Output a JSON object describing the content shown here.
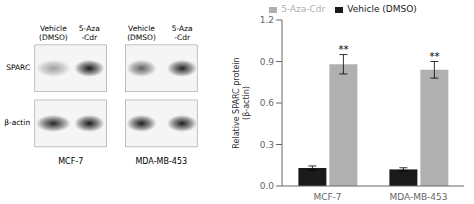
{
  "chart_data": {
    "type": "bar",
    "categories": [
      "MCF-7",
      "MDA-MB-453"
    ],
    "series": [
      {
        "name": "Vehicle (DMSO)",
        "color": "#1a1a1a",
        "values": [
          0.13,
          0.12
        ],
        "errors": [
          0.015,
          0.012
        ]
      },
      {
        "name": "5-Aza-Cdr",
        "color": "#b0b0b0",
        "values": [
          0.88,
          0.84
        ],
        "errors": [
          0.07,
          0.06
        ],
        "annotations": [
          "**",
          "**"
        ]
      }
    ],
    "ylabel": "Relative SPARC protein\n(β-actin)",
    "ylim": [
      0,
      1.2
    ],
    "yticks": [
      {
        "value": 0,
        "label": "0.0"
      },
      0.3,
      0.6,
      0.9,
      1.2
    ],
    "grid": false,
    "legend": "top",
    "annotations": [
      "Vehicle\n(DMSO)",
      "5-Aza\n-Cdr",
      "Vehicle\n(DMSO)",
      "5-Aza\n-Cdr",
      "SPARC",
      "β-actin",
      "MCF-7",
      "MDA-MB-453"
    ]
  }
}
